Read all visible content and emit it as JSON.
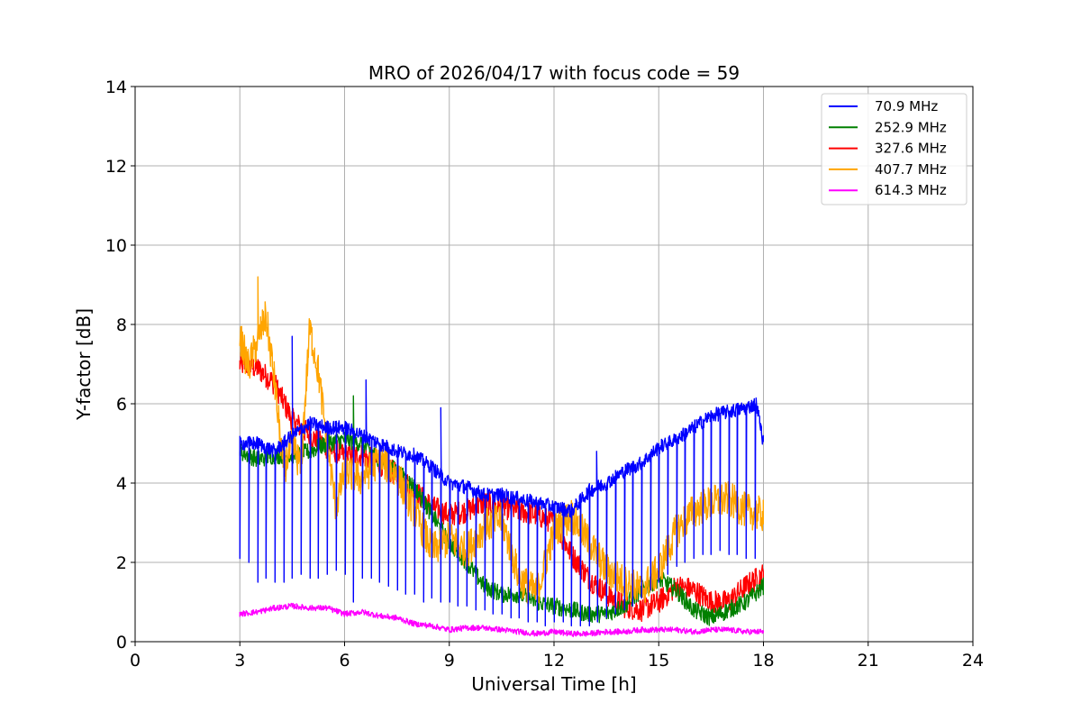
{
  "chart_data": {
    "type": "line",
    "title": "MRO of 2026/04/17 with focus code = 59",
    "xlabel": "Universal Time [h]",
    "ylabel": "Y-factor [dB]",
    "xlim": [
      0,
      24
    ],
    "ylim": [
      0,
      14
    ],
    "xticks": [
      0,
      3,
      6,
      9,
      12,
      15,
      18,
      21,
      24
    ],
    "yticks": [
      0,
      2,
      4,
      6,
      8,
      10,
      12,
      14
    ],
    "grid": true,
    "legend_position": "top-right",
    "series": [
      {
        "name": " 70.9 MHz",
        "color": "#0000ff",
        "x": [
          3.0,
          3.5,
          4.0,
          4.5,
          5.0,
          5.5,
          6.0,
          6.5,
          7.0,
          7.5,
          8.0,
          8.5,
          9.0,
          9.5,
          10.0,
          10.5,
          11.0,
          11.5,
          12.0,
          12.5,
          13.0,
          13.5,
          14.0,
          14.5,
          15.0,
          15.5,
          16.0,
          16.5,
          17.0,
          17.5,
          17.8,
          18.0
        ],
        "y": [
          5.0,
          5.0,
          4.8,
          5.2,
          5.5,
          5.4,
          5.4,
          5.2,
          5.0,
          4.8,
          4.7,
          4.4,
          4.0,
          3.9,
          3.7,
          3.7,
          3.6,
          3.5,
          3.4,
          3.3,
          3.8,
          4.0,
          4.3,
          4.5,
          4.9,
          5.1,
          5.4,
          5.7,
          5.8,
          5.9,
          6.0,
          5.0
        ],
        "dips": {
          "x": [
            3.0,
            3.25,
            3.5,
            3.75,
            4.0,
            4.25,
            4.5,
            4.75,
            5.0,
            5.25,
            5.5,
            5.75,
            6.0,
            6.25,
            6.5,
            6.75,
            7.0,
            7.25,
            7.5,
            7.75,
            8.0,
            8.25,
            8.5,
            8.75,
            9.0,
            9.25,
            9.5,
            9.75,
            10.0,
            10.25,
            10.5,
            10.75,
            11.0,
            11.25,
            11.5,
            11.75,
            12.0,
            12.25,
            12.5,
            12.75,
            13.0,
            13.25,
            13.5,
            13.75,
            14.0,
            14.25,
            14.5,
            14.75,
            15.0,
            15.25,
            15.5,
            15.75,
            16.0,
            16.25,
            16.5,
            16.75,
            17.0,
            17.25,
            17.5,
            17.75
          ],
          "low": [
            2.1,
            2.0,
            1.5,
            1.6,
            1.5,
            1.5,
            1.6,
            1.7,
            1.6,
            1.6,
            1.7,
            1.8,
            1.7,
            1.0,
            1.6,
            1.6,
            1.5,
            1.4,
            1.3,
            1.2,
            1.2,
            1.0,
            1.1,
            1.0,
            1.0,
            0.9,
            0.9,
            0.8,
            0.8,
            0.7,
            0.7,
            0.6,
            0.6,
            0.5,
            0.5,
            0.4,
            0.5,
            0.5,
            0.4,
            0.4,
            0.4,
            0.5,
            0.6,
            0.7,
            0.8,
            0.9,
            1.1,
            1.3,
            1.5,
            1.7,
            1.9,
            2.0,
            2.1,
            2.2,
            2.2,
            2.3,
            2.2,
            2.2,
            2.1,
            2.1
          ]
        },
        "spikes": {
          "x": [
            4.5,
            6.6,
            8.75,
            13.2
          ],
          "high": [
            7.7,
            6.6,
            5.9,
            4.8
          ]
        }
      },
      {
        "name": "252.9 MHz",
        "color": "#008000",
        "x": [
          3.0,
          3.5,
          4.0,
          4.5,
          5.0,
          5.5,
          6.0,
          6.5,
          7.0,
          7.5,
          8.0,
          8.5,
          9.0,
          9.5,
          10.0,
          10.5,
          11.0,
          11.5,
          12.0,
          12.5,
          13.0,
          13.5,
          14.0,
          14.5,
          15.0,
          15.5,
          16.0,
          16.5,
          17.0,
          17.5,
          18.0
        ],
        "y": [
          4.8,
          4.6,
          4.7,
          4.7,
          4.8,
          5.0,
          5.1,
          5.0,
          4.6,
          4.3,
          3.9,
          3.2,
          2.5,
          2.0,
          1.4,
          1.2,
          1.2,
          1.0,
          0.9,
          0.8,
          0.7,
          0.7,
          0.9,
          1.3,
          1.6,
          1.3,
          0.8,
          0.6,
          0.8,
          1.0,
          1.4
        ],
        "spikes": {
          "x": [
            6.25
          ],
          "high": [
            6.2
          ]
        }
      },
      {
        "name": "327.6 MHz",
        "color": "#ff0000",
        "x": [
          3.0,
          3.5,
          4.0,
          4.5,
          5.0,
          5.5,
          6.0,
          6.5,
          7.0,
          7.5,
          8.0,
          8.5,
          9.0,
          9.5,
          10.0,
          10.5,
          11.0,
          11.5,
          12.0,
          12.5,
          13.0,
          13.5,
          14.0,
          14.5,
          15.0,
          15.5,
          16.0,
          16.5,
          17.0,
          17.5,
          18.0
        ],
        "y": [
          7.0,
          6.9,
          6.5,
          5.6,
          5.2,
          4.9,
          4.7,
          4.7,
          4.5,
          4.2,
          3.8,
          3.4,
          3.2,
          3.3,
          3.5,
          3.4,
          3.3,
          3.2,
          3.0,
          2.2,
          1.6,
          1.2,
          0.9,
          0.8,
          1.0,
          1.4,
          1.3,
          1.0,
          1.0,
          1.4,
          1.7
        ]
      },
      {
        "name": "407.7 MHz",
        "color": "#ffa500",
        "x": [
          3.0,
          3.25,
          3.5,
          3.75,
          4.0,
          4.25,
          4.5,
          4.75,
          5.0,
          5.25,
          5.5,
          5.75,
          6.0,
          6.5,
          7.0,
          7.5,
          8.0,
          8.5,
          9.0,
          9.5,
          10.0,
          10.5,
          11.0,
          11.5,
          12.0,
          12.5,
          13.0,
          13.5,
          14.0,
          14.5,
          15.0,
          15.5,
          16.0,
          16.5,
          17.0,
          17.5,
          18.0
        ],
        "y": [
          7.7,
          6.9,
          7.6,
          8.2,
          6.5,
          4.3,
          5.0,
          4.4,
          7.9,
          6.8,
          5.0,
          3.4,
          4.3,
          4.1,
          4.6,
          4.2,
          3.3,
          2.3,
          2.6,
          2.3,
          2.9,
          3.1,
          1.6,
          1.2,
          2.8,
          3.2,
          2.5,
          1.8,
          1.5,
          1.3,
          1.8,
          2.8,
          3.3,
          3.5,
          3.6,
          3.3,
          3.2
        ],
        "spikes": {
          "x": [
            3.5
          ],
          "high": [
            9.2
          ]
        }
      },
      {
        "name": "614.3 MHz",
        "color": "#ff00ff",
        "x": [
          3.0,
          3.5,
          4.0,
          4.5,
          5.0,
          5.5,
          6.0,
          6.5,
          7.0,
          7.5,
          8.0,
          8.5,
          9.0,
          9.5,
          10.0,
          10.5,
          11.0,
          11.5,
          12.0,
          12.5,
          13.0,
          13.5,
          14.0,
          14.5,
          15.0,
          15.5,
          16.0,
          16.5,
          17.0,
          17.5,
          18.0
        ],
        "y": [
          0.7,
          0.75,
          0.85,
          0.9,
          0.85,
          0.85,
          0.7,
          0.75,
          0.65,
          0.6,
          0.45,
          0.4,
          0.3,
          0.35,
          0.35,
          0.3,
          0.25,
          0.2,
          0.25,
          0.2,
          0.2,
          0.25,
          0.25,
          0.3,
          0.3,
          0.3,
          0.25,
          0.3,
          0.3,
          0.25,
          0.25
        ]
      }
    ]
  }
}
